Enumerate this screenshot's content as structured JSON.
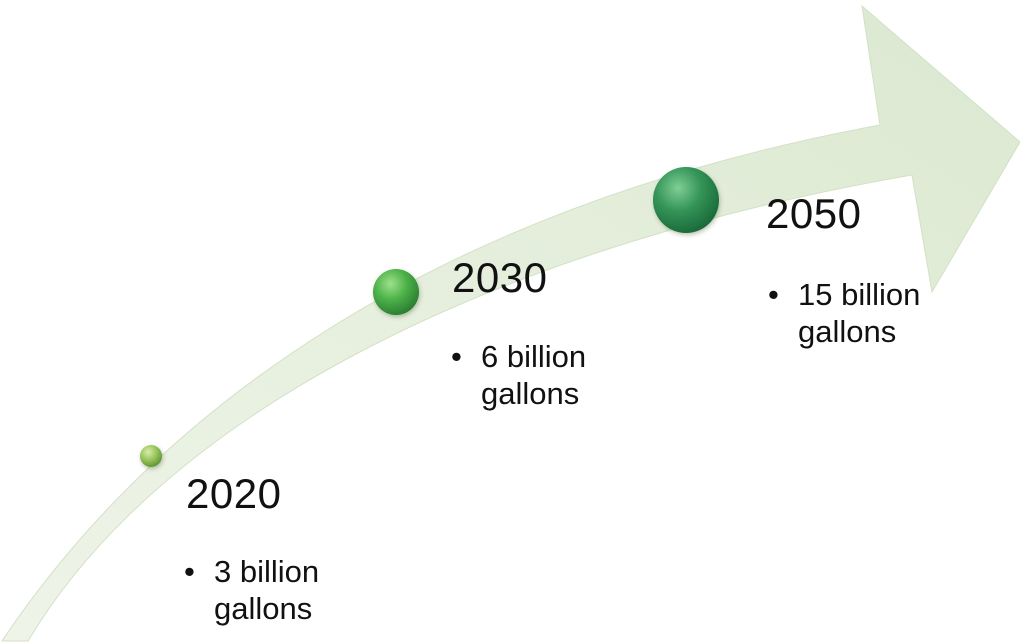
{
  "milestones": [
    {
      "year": "2020",
      "bullet": "•",
      "text": "3 billion gallons"
    },
    {
      "year": "2030",
      "bullet": "•",
      "text": "6 billion gallons"
    },
    {
      "year": "2050",
      "bullet": "•",
      "text": "15 billion gallons"
    }
  ],
  "colors": {
    "arrow_fill": "#e4eedc",
    "arrow_edge": "#d3e2c7",
    "dot_small": "#8fbf52",
    "dot_medium": "#4caf4a",
    "dot_large": "#2e8b4c",
    "text": "#111111"
  }
}
